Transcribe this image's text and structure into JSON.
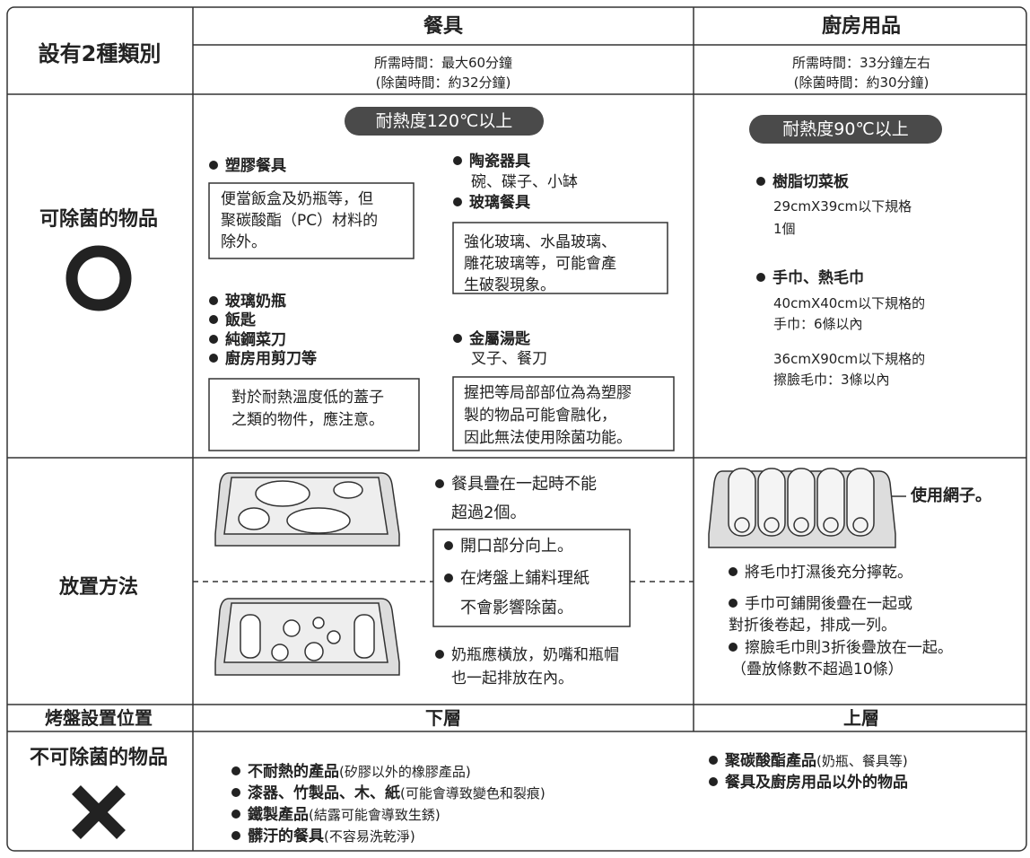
{
  "header": {
    "category_label": "設有2種類別",
    "columns": [
      {
        "title": "餐具",
        "time": "所需時間：最大60分鐘",
        "sterilize_time": "(除菌時間：約32分鐘)"
      },
      {
        "title": "廚房用品",
        "time": "所需時間：33分鐘左右",
        "sterilize_time": "(除菌時間：約30分鐘)"
      }
    ]
  },
  "sterilizable": {
    "label": "可除菌的物品",
    "tableware": {
      "heat": "耐熱度120℃以上",
      "plastic": {
        "title": "塑膠餐具",
        "note": [
          "便當飯盒及奶瓶等，但",
          "聚碳酸酯（PC）材料的",
          "除外。"
        ]
      },
      "ceramics": {
        "title": "陶瓷器具",
        "detail": "碗、碟子、小缽"
      },
      "glass": {
        "title": "玻璃餐具",
        "note": [
          "強化玻璃、水晶玻璃、",
          "雕花玻璃等，可能會產",
          "生破裂現象。"
        ]
      },
      "list": [
        "玻璃奶瓶",
        "飯匙",
        "純鋼菜刀",
        "廚房用剪刀等"
      ],
      "list_note": [
        "對於耐熱溫度低的蓋子",
        "之類的物件，應注意。"
      ],
      "metal": {
        "title": "金屬湯匙",
        "detail": "叉子、餐刀",
        "note": [
          "握把等局部部位為為塑膠",
          "製的物品可能會融化，",
          "因此無法使用除菌功能。"
        ]
      }
    },
    "kitchen": {
      "heat": "耐熱度90℃以上",
      "board": {
        "title": "樹脂切菜板",
        "details": [
          "29cmX39cm以下規格",
          "1個"
        ]
      },
      "towel": {
        "title": "手巾、熱毛巾",
        "details": [
          "40cmX40cm以下規格的",
          "手巾：6條以內",
          "36cmX90cm以下規格的",
          "擦臉毛巾：3條以內"
        ]
      }
    }
  },
  "placement": {
    "label": "放置方法",
    "tableware": {
      "stack": [
        "餐具疊在一起時不能",
        "超過2個。"
      ],
      "box": [
        "開口部分向上。",
        "在烤盤上鋪料理紙",
        "不會影響除菌。"
      ],
      "bottle": [
        "奶瓶應橫放，奶嘴和瓶帽",
        "也一起排放在內。"
      ]
    },
    "kitchen": {
      "net_label": "使用網子。",
      "notes": [
        "將毛巾打濕後充分擰乾。",
        "手巾可鋪開後疊在一起或",
        "對折後卷起，排成一列。",
        "擦臉毛巾則3折後疊放在一起。",
        "（疊放條數不超過10條）"
      ]
    }
  },
  "tray_position": {
    "label": "烤盤設置位置",
    "tableware": "下層",
    "kitchen": "上層"
  },
  "not_sterilizable": {
    "label": "不可除菌的物品",
    "tableware": [
      {
        "name": "不耐熱的產品",
        "note": "(矽膠以外的橡膠產品)"
      },
      {
        "name": "漆器、竹製品、木、紙",
        "note": "(可能會導致變色和裂痕)"
      },
      {
        "name": "鐵製產品",
        "note": "(結露可能會導致生銹)"
      },
      {
        "name": "髒汙的餐具",
        "note": "(不容易洗乾淨)"
      }
    ],
    "kitchen": [
      {
        "name": "聚碳酸酯產品",
        "note": "(奶瓶、餐具等)"
      },
      {
        "name": "餐具及廚房用品以外的物品",
        "note": ""
      }
    ]
  }
}
